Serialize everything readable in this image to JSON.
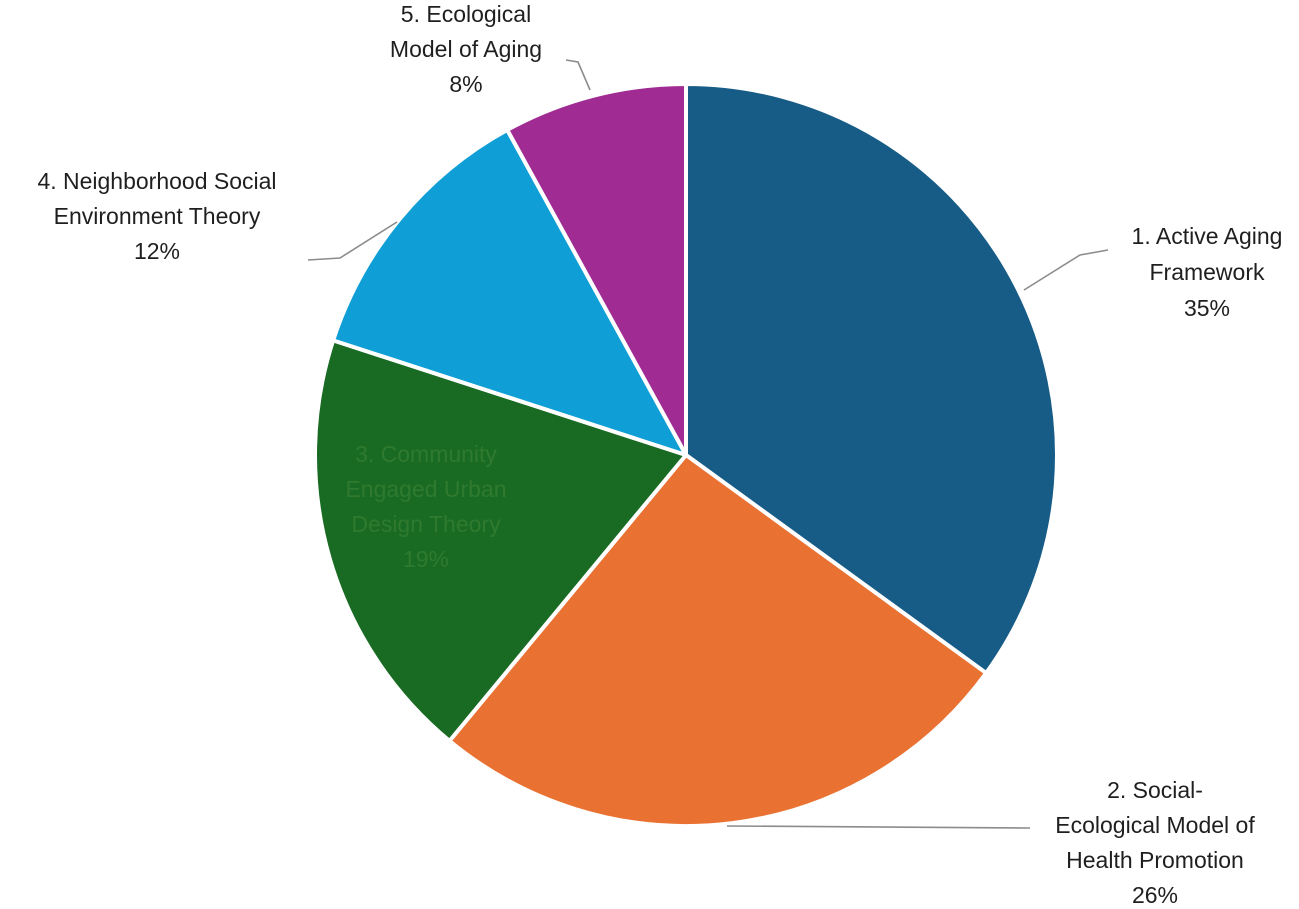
{
  "chart_data": {
    "type": "pie",
    "title": "",
    "slices": [
      {
        "label": "1. Active Aging Framework",
        "lines": [
          "1. Active Aging",
          "Framework",
          "35%"
        ],
        "value": 35,
        "color": "#175c86"
      },
      {
        "label": "2. Social-Ecological Model of Health Promotion",
        "lines": [
          "2.   Social-",
          "Ecological Model of",
          "Health Promotion",
          "26%"
        ],
        "value": 26,
        "color": "#e97132"
      },
      {
        "label": "3. Community Engaged Urban Design Theory",
        "lines": [
          "3.     Community",
          "Engaged Urban",
          "Design Theory",
          "19%"
        ],
        "value": 19,
        "color": "#196b24"
      },
      {
        "label": "4. Neighborhood Social Environment Theory",
        "lines": [
          "4.   Neighborhood Social",
          "Environment Theory",
          "12%"
        ],
        "value": 12,
        "color": "#0f9ed5"
      },
      {
        "label": "5. Ecological Model of Aging",
        "lines": [
          "5. Ecological",
          "Model of Aging",
          "8%"
        ],
        "value": 8,
        "color": "#a02b93"
      }
    ],
    "legend": "none",
    "start_angle": "12 o'clock",
    "direction": "clockwise"
  }
}
